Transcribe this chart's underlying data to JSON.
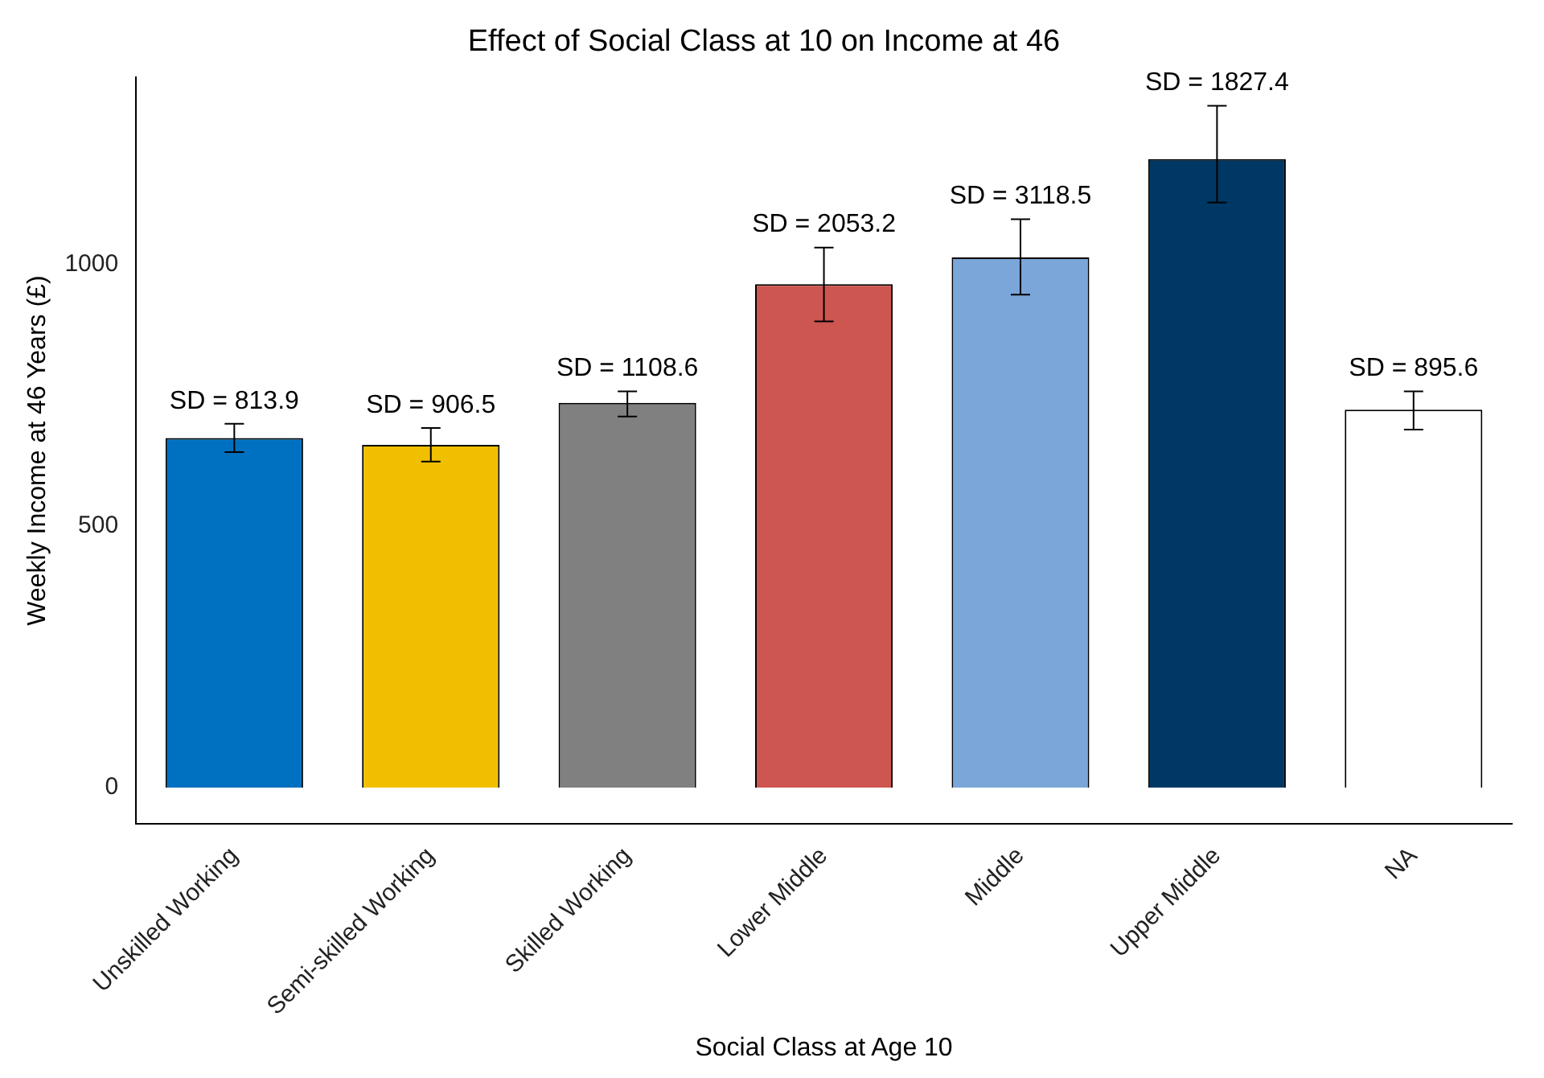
{
  "chart_data": {
    "type": "bar",
    "title": "Effect of Social Class at 10 on Income at 46",
    "xlabel": "Social Class at Age 10",
    "ylabel": "Weekly Income at 46 Years (£)",
    "categories": [
      "Unskilled Working",
      "Semi-skilled Working",
      "Skilled Working",
      "Lower Middle",
      "Middle",
      "Upper Middle",
      "NA"
    ],
    "values": [
      668,
      655,
      735,
      962,
      1013,
      1201,
      722
    ],
    "colors": [
      "#0070c0",
      "#f0c000",
      "#808080",
      "#cd5650",
      "#7aa6da",
      "#003865",
      "#ffffff"
    ],
    "errors": [
      [
        641,
        695
      ],
      [
        623,
        687
      ],
      [
        709,
        757
      ],
      [
        891,
        1032
      ],
      [
        942,
        1086
      ],
      [
        1118,
        1303
      ],
      [
        684,
        757
      ]
    ],
    "ylim": [
      -70,
      1358
    ],
    "yticks": [
      0,
      500,
      1000
    ],
    "grid": false,
    "legend": false,
    "annotations": [
      {
        "text": "SD = 813.9",
        "x": "Unskilled Working",
        "y": 695
      },
      {
        "text": "SD = 906.5",
        "x": "Semi-skilled Working",
        "y": 687
      },
      {
        "text": "SD = 1108.6",
        "x": "Skilled Working",
        "y": 757
      },
      {
        "text": "SD = 2053.2",
        "x": "Lower Middle",
        "y": 1032
      },
      {
        "text": "SD = 3118.5",
        "x": "Middle",
        "y": 1086
      },
      {
        "text": "SD = 1827.4",
        "x": "Upper Middle",
        "y": 1303
      },
      {
        "text": "SD = 895.6",
        "x": "NA",
        "y": 757
      }
    ]
  }
}
